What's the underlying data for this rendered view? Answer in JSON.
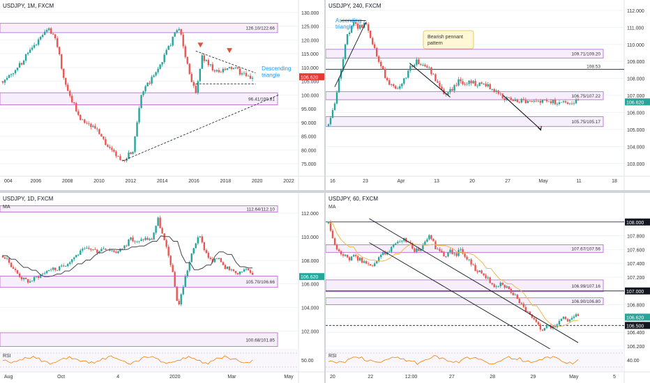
{
  "colors": {
    "up": "#26a69a",
    "down": "#ef5350",
    "zone_stroke": "#b061c9",
    "zone_fill": "#f6eefa",
    "ma": "#434651",
    "ma_orange": "#f5b84a",
    "rsi": "#f57c00",
    "price_badge": "#26a69a",
    "price_badge_red": "#e53935",
    "annotation_blue": "#2196f3",
    "bg": "#ffffff",
    "grid": "#f0f3fa",
    "axis_text": "#333333"
  },
  "chart_data": [
    {
      "id": "monthly",
      "type": "candlestick",
      "title": "USDJPY, 1M, FXCM",
      "price_label": "106.620",
      "y_ticks": [
        "130.000",
        "125.000",
        "120.000",
        "115.000",
        "110.000",
        "105.000",
        "100.000",
        "95.000",
        "90.000",
        "85.000",
        "80.000",
        "75.000"
      ],
      "x_ticks": [
        "004",
        "2006",
        "2008",
        "2010",
        "2012",
        "2014",
        "2016",
        "2018",
        "2020",
        "2022"
      ],
      "ylim": [
        72,
        132
      ],
      "annotations": [
        "126.10/122.66",
        "96.41/100.81",
        "Descending triangle"
      ],
      "zones": [
        {
          "label": "126.10/122.66",
          "y1": 126.1,
          "y2": 122.66
        },
        {
          "label": "96.41/100.81",
          "y1": 100.81,
          "y2": 96.41
        }
      ],
      "description_series": {
        "x": [
          2004,
          2005,
          2006,
          2007,
          2007.5,
          2008,
          2009,
          2010,
          2011,
          2011.8,
          2012.5,
          2013,
          2014,
          2015.5,
          2016,
          2016.6,
          2017,
          2018,
          2019,
          2020.1,
          2020.3
        ],
        "y": [
          105,
          110,
          118,
          124,
          120,
          105,
          92,
          88,
          80,
          76,
          80,
          100,
          108,
          125,
          112,
          100,
          114,
          108,
          110,
          106,
          106.62
        ]
      },
      "markers": [
        {
          "x": 2016.9,
          "y": 116.5,
          "kind": "red-arrow"
        },
        {
          "x": 2018.8,
          "y": 114.5,
          "kind": "red-arrow"
        }
      ]
    },
    {
      "id": "h4",
      "type": "candlestick",
      "title": "USDJPY, 240, FXCM",
      "price_label": "106.620",
      "y_ticks": [
        "112.000",
        "111.000",
        "110.000",
        "109.000",
        "108.000",
        "107.000",
        "106.000",
        "105.000",
        "104.000",
        "103.000"
      ],
      "x_ticks": [
        "16",
        "23",
        "Apr",
        "13",
        "20",
        "27",
        "May",
        "11",
        "18"
      ],
      "ylim": [
        102.5,
        112.2
      ],
      "annotations": [
        "Ascending triangle",
        "Bearish pennant pattern",
        "109.71/109.20",
        "108.53",
        "106.75/107.22",
        "105.75/105.17"
      ],
      "zones": [
        {
          "label": "109.71/109.20",
          "y1": 109.71,
          "y2": 109.2
        },
        {
          "label": "106.75/107.22",
          "y1": 107.22,
          "y2": 106.75
        },
        {
          "label": "105.75/105.17",
          "y1": 105.75,
          "y2": 105.17
        }
      ],
      "lines": [
        {
          "label": "108.53",
          "y": 108.53
        }
      ],
      "description_series": {
        "x": [
          0,
          1,
          2,
          3,
          4,
          5,
          6,
          7,
          8,
          9,
          10,
          11,
          12,
          13,
          14,
          15,
          16,
          17,
          18,
          19,
          20,
          21,
          22,
          23,
          24,
          25,
          26,
          27,
          28,
          29,
          30,
          31,
          32,
          33,
          34,
          35,
          36,
          37,
          38,
          39,
          40
        ],
        "y": [
          105.2,
          106.5,
          108.5,
          110.5,
          111.2,
          111.0,
          111.3,
          110.2,
          109.0,
          108.2,
          107.6,
          107.2,
          107.8,
          108.6,
          109.0,
          108.8,
          108.6,
          108.0,
          107.3,
          107.0,
          107.5,
          107.9,
          107.7,
          107.8,
          107.6,
          107.7,
          107.4,
          107.2,
          106.9,
          106.75,
          106.62,
          106.7,
          106.62,
          106.6,
          106.62,
          106.62,
          106.62,
          106.62,
          106.62,
          106.62,
          106.62
        ]
      }
    },
    {
      "id": "daily",
      "type": "candlestick",
      "title": "USDJPY, 1D, FXCM",
      "legend": "MA",
      "price_label": "106.620",
      "y_ticks": [
        "112.000",
        "110.000",
        "108.000",
        "106.000",
        "104.000",
        "102.000"
      ],
      "x_ticks": [
        "Aug",
        "Oct",
        "4",
        "2020",
        "Mar",
        "May"
      ],
      "ylim": [
        100.6,
        112.9
      ],
      "annotations": [
        "112.64/112.10",
        "105.70/106.66",
        "100.68/101.85"
      ],
      "zones": [
        {
          "label": "112.64/112.10",
          "y1": 112.64,
          "y2": 112.1
        },
        {
          "label": "105.70/106.66",
          "y1": 106.66,
          "y2": 105.7
        },
        {
          "label": "100.68/101.85",
          "y1": 101.85,
          "y2": 100.68
        }
      ],
      "rsi_label": "RSI",
      "rsi_tick": "50.00",
      "description_series": {
        "x": [
          0,
          1,
          2,
          3,
          4,
          5,
          6,
          7,
          8,
          9,
          10,
          11,
          12,
          13,
          14,
          15,
          16,
          17,
          18,
          19,
          20,
          21,
          22,
          23,
          24,
          25,
          26,
          27,
          28,
          29,
          30,
          31,
          32,
          33,
          34,
          35,
          36,
          37
        ],
        "y": [
          108.4,
          107.8,
          107.0,
          106.4,
          106.2,
          106.6,
          106.9,
          107.3,
          107.2,
          107.5,
          108.0,
          108.5,
          108.9,
          109.0,
          108.8,
          109.1,
          108.9,
          108.7,
          109.2,
          109.8,
          109.5,
          109.9,
          109.7,
          111.5,
          109.5,
          107.5,
          104.0,
          106.5,
          108.5,
          110.2,
          108.8,
          107.8,
          108.3,
          107.4,
          107.0,
          106.8,
          107.3,
          106.62
        ]
      }
    },
    {
      "id": "h1",
      "type": "candlestick",
      "title": "USDJPY, 60, FXCM",
      "legend": "MA",
      "price_label": "106.620",
      "y_ticks": [
        "108.000",
        "107.800",
        "107.600",
        "107.400",
        "107.200",
        "107.000",
        "106.800",
        "106.600",
        "106.400",
        "106.200"
      ],
      "x_ticks": [
        "20",
        "22",
        "12:00",
        "27",
        "28",
        "29",
        "May",
        "5"
      ],
      "ylim": [
        106.18,
        108.22
      ],
      "annotations": [
        "107.67/107.56",
        "106.99/107.16",
        "106.90/106.80"
      ],
      "zones": [
        {
          "label": "107.67/107.56",
          "y1": 107.67,
          "y2": 107.56
        },
        {
          "label": "106.99/107.16",
          "y1": 107.16,
          "y2": 106.99
        },
        {
          "label": "106.90/106.80",
          "y1": 106.9,
          "y2": 106.8
        }
      ],
      "lines": [
        {
          "label": "108.000",
          "y": 108.0
        },
        {
          "label": "107.000",
          "y": 107.0
        },
        {
          "label": "106.500",
          "y": 106.5
        }
      ],
      "rsi_label": "RSI",
      "rsi_tick": "40.00",
      "description_series": {
        "x": [
          0,
          1,
          2,
          3,
          4,
          5,
          6,
          7,
          8,
          9,
          10,
          11,
          12,
          13,
          14,
          15,
          16,
          17,
          18,
          19,
          20,
          21,
          22,
          23,
          24,
          25,
          26,
          27,
          28,
          29,
          30,
          31,
          32,
          33,
          34,
          35,
          36,
          37,
          38,
          39,
          40,
          41,
          42,
          43,
          44,
          45,
          46,
          47,
          48,
          49
        ],
        "y": [
          107.98,
          107.7,
          107.55,
          107.52,
          107.45,
          107.5,
          107.46,
          107.42,
          107.4,
          107.38,
          107.5,
          107.55,
          107.6,
          107.66,
          107.7,
          107.75,
          107.68,
          107.58,
          107.6,
          107.72,
          107.8,
          107.62,
          107.55,
          107.5,
          107.58,
          107.52,
          107.62,
          107.48,
          107.4,
          107.3,
          107.25,
          107.2,
          107.1,
          107.05,
          107.12,
          107.05,
          106.95,
          106.9,
          106.78,
          106.7,
          106.6,
          106.52,
          106.4,
          106.5,
          106.46,
          106.55,
          106.62,
          106.58,
          106.65,
          106.62
        ]
      }
    }
  ]
}
